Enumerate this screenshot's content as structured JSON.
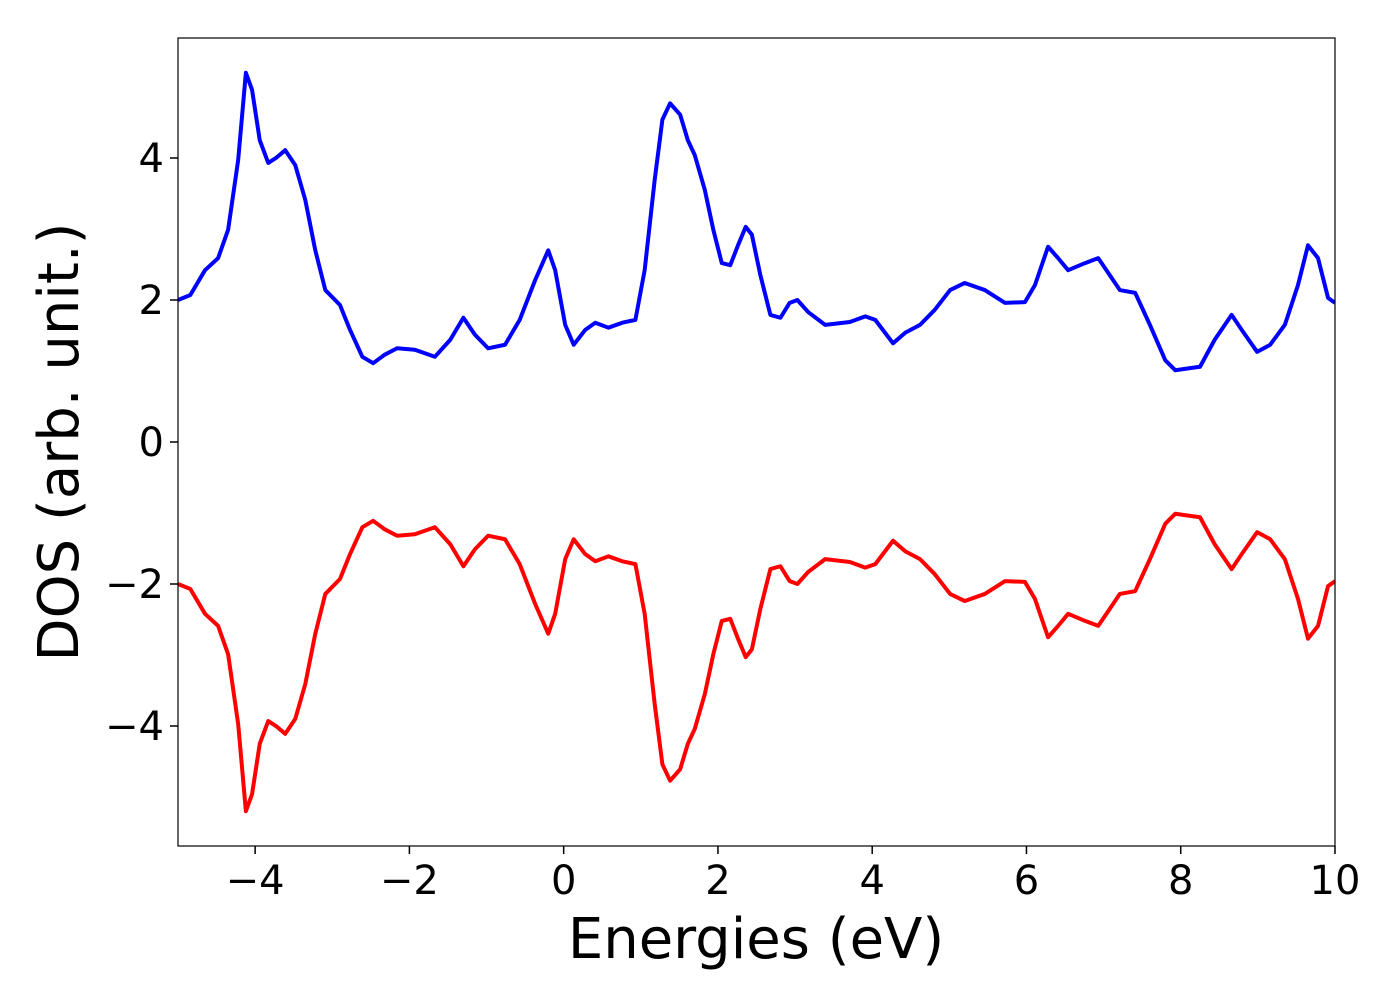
{
  "chart_data": {
    "type": "line",
    "xlabel": "Energies (eV)",
    "ylabel": "DOS (arb. unit.)",
    "x": [
      -5,
      -4.84,
      -4.65,
      -4.48,
      -4.35,
      -4.22,
      -4.12,
      -4.04,
      -3.94,
      -3.83,
      -3.73,
      -3.61,
      -3.48,
      -3.35,
      -3.22,
      -3.09,
      -2.9,
      -2.77,
      -2.61,
      -2.47,
      -2.32,
      -2.16,
      -1.93,
      -1.67,
      -1.47,
      -1.3,
      -1.15,
      -0.98,
      -0.76,
      -0.57,
      -0.37,
      -0.2,
      -0.11,
      0.02,
      0.13,
      0.28,
      0.41,
      0.58,
      0.76,
      0.93,
      1.05,
      1.18,
      1.28,
      1.38,
      1.51,
      1.61,
      1.7,
      1.83,
      1.94,
      2.05,
      2.16,
      2.26,
      2.36,
      2.44,
      2.55,
      2.68,
      2.81,
      2.93,
      3.03,
      3.17,
      3.39,
      3.71,
      3.91,
      4.04,
      4.27,
      4.43,
      4.62,
      4.81,
      5.01,
      5.2,
      5.46,
      5.72,
      5.98,
      6.11,
      6.28,
      6.41,
      6.54,
      6.76,
      6.93,
      7.08,
      7.21,
      7.41,
      7.6,
      7.8,
      7.93,
      8.12,
      8.25,
      8.44,
      8.66,
      8.79,
      8.99,
      9.16,
      9.35,
      9.52,
      9.65,
      9.78,
      9.91,
      10
    ],
    "series": [
      {
        "color": "#0000ff",
        "values": [
          2.0,
          2.07,
          2.42,
          2.59,
          2.99,
          3.97,
          5.2,
          4.96,
          4.25,
          3.93,
          4.0,
          4.11,
          3.9,
          3.41,
          2.7,
          2.14,
          1.93,
          1.58,
          1.2,
          1.11,
          1.23,
          1.32,
          1.3,
          1.2,
          1.44,
          1.75,
          1.51,
          1.32,
          1.37,
          1.72,
          2.28,
          2.7,
          2.42,
          1.65,
          1.37,
          1.58,
          1.68,
          1.61,
          1.68,
          1.72,
          2.42,
          3.69,
          4.54,
          4.77,
          4.61,
          4.25,
          4.04,
          3.55,
          2.99,
          2.52,
          2.49,
          2.77,
          3.03,
          2.92,
          2.35,
          1.79,
          1.75,
          1.96,
          2.0,
          1.83,
          1.65,
          1.69,
          1.77,
          1.72,
          1.39,
          1.54,
          1.65,
          1.86,
          2.14,
          2.24,
          2.14,
          1.96,
          1.97,
          2.21,
          2.75,
          2.59,
          2.42,
          2.52,
          2.59,
          2.35,
          2.14,
          2.1,
          1.65,
          1.15,
          1.01,
          1.04,
          1.06,
          1.44,
          1.79,
          1.58,
          1.27,
          1.37,
          1.65,
          2.21,
          2.77,
          2.59,
          2.03,
          1.96
        ]
      },
      {
        "color": "#ff0000",
        "values": [
          -2.0,
          -2.07,
          -2.42,
          -2.59,
          -2.99,
          -3.97,
          -5.2,
          -4.96,
          -4.25,
          -3.93,
          -4.0,
          -4.11,
          -3.9,
          -3.41,
          -2.7,
          -2.14,
          -1.93,
          -1.58,
          -1.2,
          -1.11,
          -1.23,
          -1.32,
          -1.3,
          -1.2,
          -1.44,
          -1.75,
          -1.51,
          -1.32,
          -1.37,
          -1.72,
          -2.28,
          -2.7,
          -2.42,
          -1.65,
          -1.37,
          -1.58,
          -1.68,
          -1.61,
          -1.68,
          -1.72,
          -2.42,
          -3.69,
          -4.54,
          -4.77,
          -4.61,
          -4.25,
          -4.04,
          -3.55,
          -2.99,
          -2.52,
          -2.49,
          -2.77,
          -3.03,
          -2.92,
          -2.35,
          -1.79,
          -1.75,
          -1.96,
          -2.0,
          -1.83,
          -1.65,
          -1.69,
          -1.77,
          -1.72,
          -1.39,
          -1.54,
          -1.65,
          -1.86,
          -2.14,
          -2.24,
          -2.14,
          -1.96,
          -1.97,
          -2.21,
          -2.75,
          -2.59,
          -2.42,
          -2.52,
          -2.59,
          -2.35,
          -2.14,
          -2.1,
          -1.65,
          -1.15,
          -1.01,
          -1.04,
          -1.06,
          -1.44,
          -1.79,
          -1.58,
          -1.27,
          -1.37,
          -1.65,
          -2.21,
          -2.77,
          -2.59,
          -2.03,
          -1.96
        ]
      }
    ],
    "xlim": [
      -5,
      10
    ],
    "xticks": [
      {
        "value": -4,
        "label": "−4"
      },
      {
        "value": -2,
        "label": "−2"
      },
      0,
      2,
      4,
      6,
      8,
      10
    ],
    "ylim": [
      -5.69,
      5.69
    ],
    "yticks": [
      {
        "value": -4,
        "label": "−4"
      },
      {
        "value": -2,
        "label": "−2"
      },
      0,
      2,
      4
    ],
    "grid": false
  }
}
